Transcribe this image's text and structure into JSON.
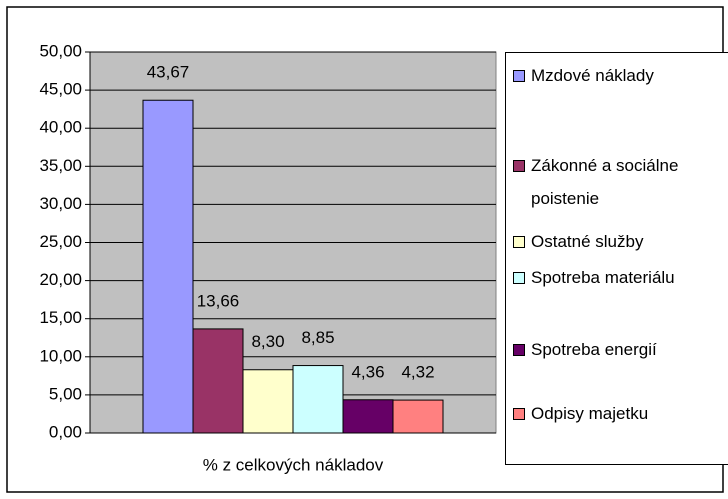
{
  "chart_data": {
    "type": "bar",
    "categories": [
      "% z celkových nákladov"
    ],
    "series": [
      {
        "name": "Mzdové náklady",
        "color": "#9999ff",
        "values": [
          43.67
        ],
        "value_labels": [
          "43,67"
        ]
      },
      {
        "name": "Zákonné a sociálne poistenie",
        "color": "#993366",
        "values": [
          13.66
        ],
        "value_labels": [
          "13,66"
        ]
      },
      {
        "name": "Ostatné služby",
        "color": "#ffffcc",
        "values": [
          8.3
        ],
        "value_labels": [
          "8,30"
        ]
      },
      {
        "name": "Spotreba materiálu",
        "color": "#ccffff",
        "values": [
          8.85
        ],
        "value_labels": [
          "8,85"
        ]
      },
      {
        "name": "Spotreba energií",
        "color": "#660066",
        "values": [
          4.36
        ],
        "value_labels": [
          "4,36"
        ]
      },
      {
        "name": "Odpisy majetku",
        "color": "#ff8080",
        "values": [
          4.32
        ],
        "value_labels": [
          "4,32"
        ]
      }
    ],
    "ylim": [
      0,
      50
    ],
    "yticks": [
      {
        "value": 0,
        "label": "0,00"
      },
      {
        "value": 5,
        "label": "5,00"
      },
      {
        "value": 10,
        "label": "10,00"
      },
      {
        "value": 15,
        "label": "15,00"
      },
      {
        "value": 20,
        "label": "20,00"
      },
      {
        "value": 25,
        "label": "25,00"
      },
      {
        "value": 30,
        "label": "30,00"
      },
      {
        "value": 35,
        "label": "35,00"
      },
      {
        "value": 40,
        "label": "40,00"
      },
      {
        "value": 45,
        "label": "45,00"
      },
      {
        "value": 50,
        "label": "50,00"
      }
    ],
    "grid": true,
    "plot_background": "#c0c0c0",
    "legend": "right"
  }
}
